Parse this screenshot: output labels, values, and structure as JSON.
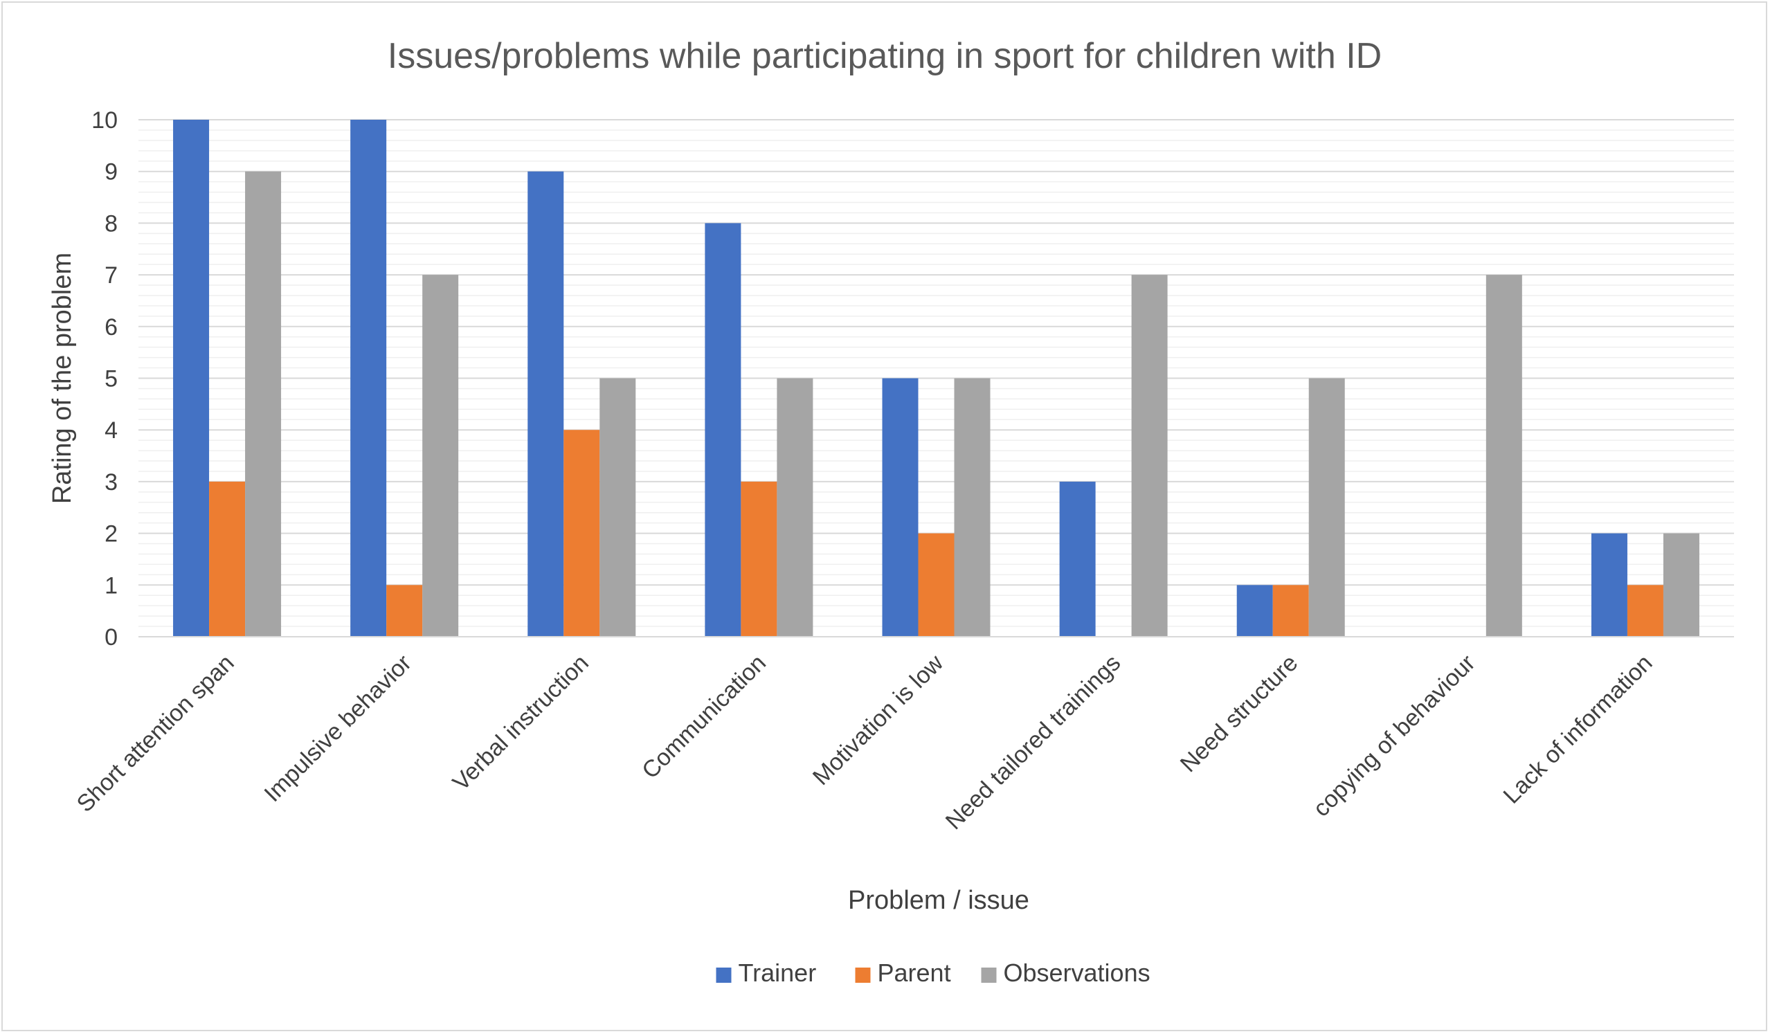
{
  "chart_data": {
    "type": "bar",
    "title": "Issues/problems while participating in sport for children with ID",
    "xlabel": "Problem / issue",
    "ylabel": "Rating of the problem",
    "ylim": [
      0,
      10
    ],
    "yticks": [
      0,
      1,
      2,
      3,
      4,
      5,
      6,
      7,
      8,
      9,
      10
    ],
    "grid": true,
    "legend_position": "bottom",
    "categories": [
      "Short attention span",
      "Impulsive behavior",
      "Verbal instruction",
      "Communication",
      "Motivation is low",
      "Need tailored trainings",
      "Need structure",
      "copying of behaviour",
      "Lack of information"
    ],
    "series": [
      {
        "name": "Trainer",
        "color": "#4472C4",
        "values": [
          10,
          10,
          9,
          8,
          5,
          3,
          1,
          0,
          2
        ]
      },
      {
        "name": "Parent",
        "color": "#ED7D31",
        "values": [
          3,
          1,
          4,
          3,
          2,
          0,
          1,
          0,
          1
        ]
      },
      {
        "name": "Observations",
        "color": "#A5A5A5",
        "values": [
          9,
          7,
          5,
          5,
          5,
          7,
          5,
          7,
          2
        ]
      }
    ]
  }
}
